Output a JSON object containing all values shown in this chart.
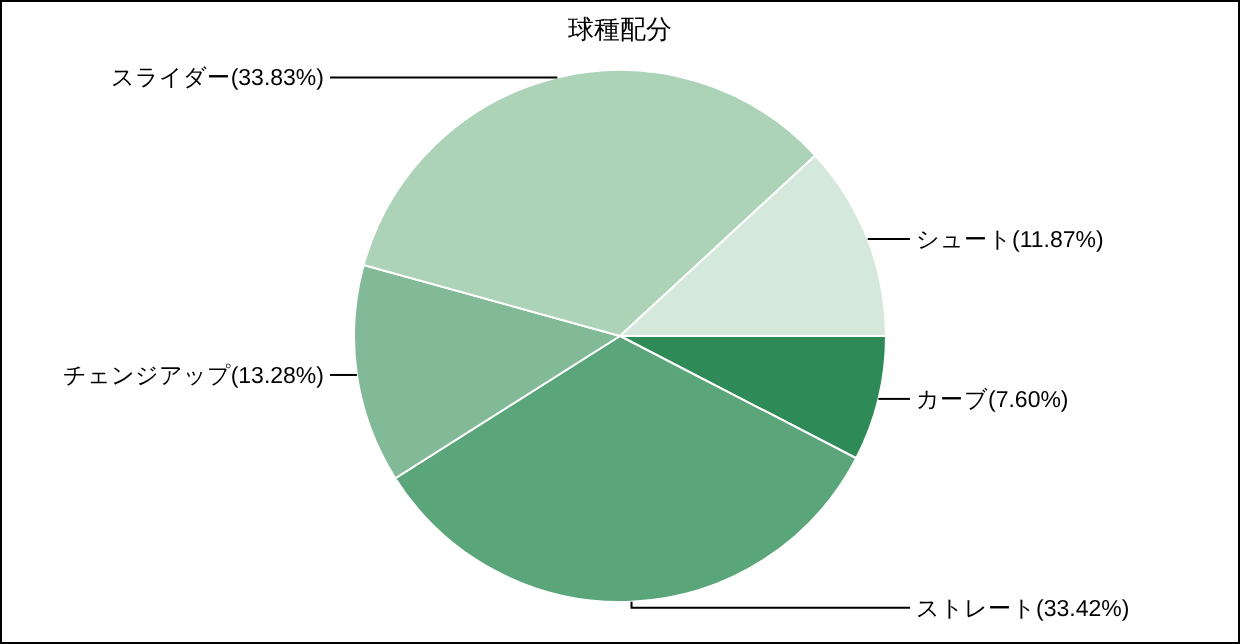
{
  "chart_data": {
    "type": "pie",
    "title": "球種配分",
    "categories": [
      "カーブ",
      "ストレート",
      "チェンジアップ",
      "スライダー",
      "シュート"
    ],
    "values": [
      7.6,
      33.42,
      13.28,
      33.83,
      11.87
    ],
    "value_labels": [
      "(7.60%)",
      "(33.42%)",
      "(13.28%)",
      "(33.83%)",
      "(11.87%)"
    ],
    "colors": [
      "#2e8b57",
      "#5aa67a",
      "#82ba98",
      "#acd2b8",
      "#d5e8dc"
    ]
  }
}
